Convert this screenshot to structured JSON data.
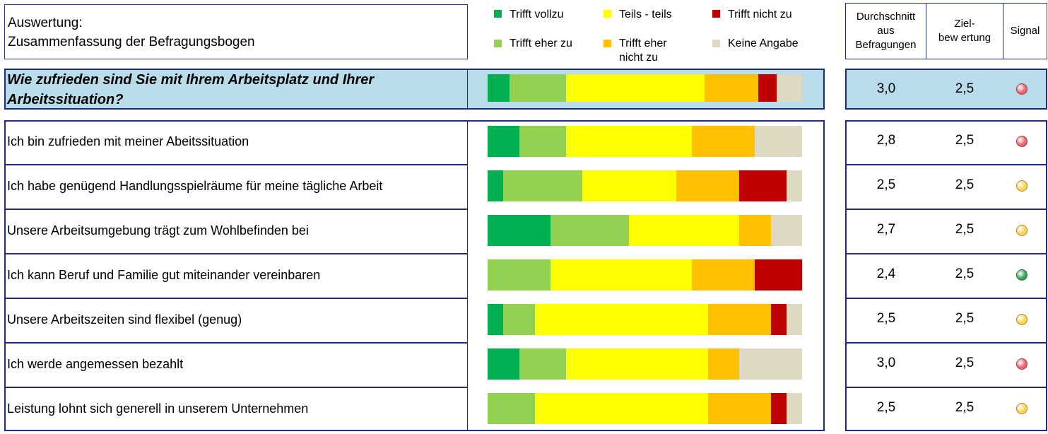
{
  "header": {
    "title_line1": "Auswertung:",
    "title_line2": "Zusammenfassung der Befragungsbogen",
    "col_avg": [
      "Durchschnitt",
      "aus",
      "Befragungen"
    ],
    "col_target": [
      "Ziel-",
      "bew ertung"
    ],
    "col_signal": "Signal"
  },
  "legend": [
    {
      "label": "Trifft vollzu",
      "color": "#00b050"
    },
    {
      "label": "Teils - teils",
      "color": "#ffff00"
    },
    {
      "label": "Trifft nicht zu",
      "color": "#c00000"
    },
    {
      "label": "Trifft eher zu",
      "color": "#92d050"
    },
    {
      "label_line1": "Trifft eher",
      "label_line2": "nicht zu",
      "color": "#ffc000"
    },
    {
      "label": "Keine Angabe",
      "color": "#ddd9c3"
    }
  ],
  "signal_colors": {
    "red": "#e8636b",
    "yellow": "#ffd24d",
    "green": "#3aa357"
  },
  "chart_data": {
    "type": "bar",
    "orientation": "horizontal",
    "stacked": "100%",
    "series_names": [
      "Trifft vollzu",
      "Trifft eher zu",
      "Teils - teils",
      "Trifft eher nicht zu",
      "Trifft nicht zu",
      "Keine Angabe"
    ],
    "series_colors": [
      "#00b050",
      "#92d050",
      "#ffff00",
      "#ffc000",
      "#c00000",
      "#ddd9c3"
    ],
    "main": {
      "question": "Wie zufrieden sind Sie mit Ihrem Arbeitsplatz und Ihrer Arbeitssituation?",
      "values": [
        7,
        18,
        44,
        17,
        6,
        8
      ],
      "avg": "3,0",
      "target": "2,5",
      "signal": "red"
    },
    "rows": [
      {
        "question": "Ich bin zufrieden mit meiner Abeitssituation",
        "values": [
          10,
          15,
          40,
          20,
          0,
          15
        ],
        "avg": "2,8",
        "target": "2,5",
        "signal": "red"
      },
      {
        "question": "Ich habe genügend Handlungsspielräume für meine tägliche Arbeit",
        "values": [
          5,
          25,
          30,
          20,
          15,
          5
        ],
        "avg": "2,5",
        "target": "2,5",
        "signal": "yellow"
      },
      {
        "question": "Unsere Arbeitsumgebung trägt zum Wohlbefinden bei",
        "values": [
          20,
          25,
          35,
          10,
          0,
          10
        ],
        "avg": "2,7",
        "target": "2,5",
        "signal": "yellow"
      },
      {
        "question": "Ich kann Beruf und Familie gut miteinander vereinbaren",
        "values": [
          0,
          20,
          45,
          20,
          15,
          0
        ],
        "avg": "2,4",
        "target": "2,5",
        "signal": "green"
      },
      {
        "question": "Unsere Arbeitszeiten sind flexibel (genug)",
        "values": [
          5,
          10,
          55,
          20,
          5,
          5
        ],
        "avg": "2,5",
        "target": "2,5",
        "signal": "yellow"
      },
      {
        "question": "Ich werde angemessen bezahlt",
        "values": [
          10,
          15,
          45,
          10,
          0,
          20
        ],
        "avg": "3,0",
        "target": "2,5",
        "signal": "red"
      },
      {
        "question": "Leistung lohnt sich generell in unserem Unternehmen",
        "values": [
          0,
          15,
          55,
          20,
          5,
          5
        ],
        "avg": "2,5",
        "target": "2,5",
        "signal": "yellow"
      }
    ]
  }
}
